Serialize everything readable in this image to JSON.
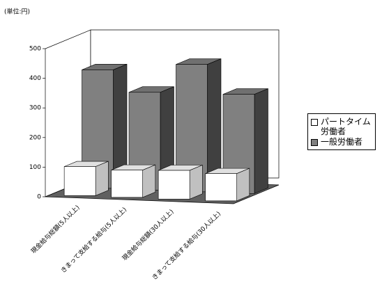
{
  "chart_data": {
    "type": "bar3d",
    "unit_label": "(単位:円)",
    "categories": [
      "現金給与総額(5人以上)",
      "きまって支給する給与(5人以上)",
      "現金給与総額(30人以上)",
      "きまって支給する給与(30人以上)"
    ],
    "series": [
      {
        "name": "パートタイム労働者",
        "color": "#ffffff",
        "values": [
          98,
          92,
          97,
          92
        ]
      },
      {
        "name": "一般労働者",
        "color": "#808080",
        "values": [
          400,
          330,
          430,
          335
        ]
      }
    ],
    "ylim": [
      0,
      500
    ],
    "yticks": [
      0,
      100,
      200,
      300,
      400,
      500
    ],
    "legend": "right"
  }
}
